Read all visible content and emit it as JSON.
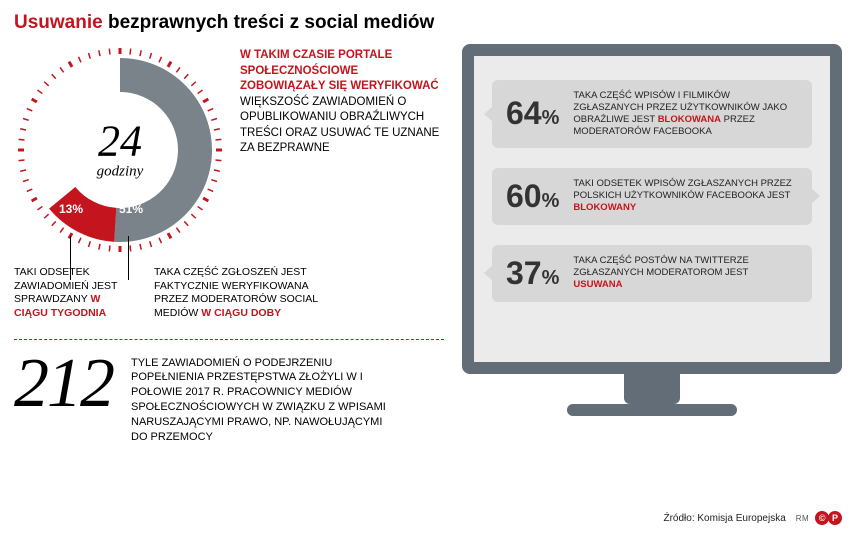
{
  "title": {
    "red": "Usuwanie",
    "rest": " bezprawnych treści z social mediów"
  },
  "donut": {
    "type": "donut",
    "center_value": "24",
    "center_unit": "godziny",
    "slices": [
      {
        "label": "51%",
        "value": 51,
        "color": "#7a828a"
      },
      {
        "label": "13%",
        "value": 13,
        "color": "#c4151e"
      }
    ],
    "remainder_color": "#e3e3e3",
    "tick_color": "#c4151e",
    "background": "#ffffff",
    "outer_radius": 100,
    "inner_radius": 58
  },
  "side_paragraph": {
    "red_lead": "W TAKIM CZASIE PORTALE SPOŁECZNOŚCIOWE ZOBOWIĄZAŁY SIĘ WERYFIKOWAĆ",
    "rest": " WIĘKSZOŚĆ ZAWIADOMIEŃ O OPUBLIKOWANIU OBRAŹLIWYCH TREŚCI ORAZ USUWAĆ TE UZNANE ZA BEZPRAWNE"
  },
  "footnotes": {
    "left": {
      "text": "TAKI ODSETEK ZAWIADOMIEŃ JEST SPRAWDZANY ",
      "red": "W CIĄGU TYGODNIA"
    },
    "right": {
      "text": "TAKA CZĘŚĆ ZGŁOSZEŃ JEST FAKTYCZNIE WERYFIKOWANA PRZEZ MODERATORÓW SOCIAL MEDIÓW ",
      "red": "W CIĄGU DOBY"
    }
  },
  "stat212": {
    "value": "212",
    "text": "TYLE ZAWIADOMIEŃ O PODEJRZENIU POPEŁNIENIA PRZESTĘPSTWA ZŁOŻYLI W I POŁOWIE 2017 R. PRACOWNICY MEDIÓW SPOŁECZNOŚCIOWYCH W ZWIĄZKU Z WPISAMI NARUSZAJĄCYMI PRAWO, NP. NAWOŁUJĄCYMI DO PRZEMOCY"
  },
  "monitor": {
    "rows": [
      {
        "pct": "64",
        "pre": "TAKA CZĘŚĆ WPISÓW I FILMIKÓW ZGŁASZANYCH PRZEZ UŻYTKOWNIKÓW JAKO OBRAŹLIWE JEST ",
        "red": "BLOKOWANA",
        "post": " PRZEZ MODERATORÓW FACEBOOKA"
      },
      {
        "pct": "60",
        "pre": "TAKI ODSETEK WPISÓW ZGŁASZANYCH PRZEZ POLSKICH UŻYTKOWNIKÓW FACEBOOKA JEST ",
        "red": "BLOKOWANY",
        "post": ""
      },
      {
        "pct": "37",
        "pre": "TAKA CZĘŚĆ POSTÓW NA TWITTERZE ZGŁASZANYCH MODERATOROM JEST ",
        "red": "USUWANA",
        "post": ""
      }
    ]
  },
  "source": {
    "label": "Źródło: Komisja Europejska",
    "credit": "RM",
    "c": "©",
    "p": "P"
  },
  "colors": {
    "red": "#c4151e",
    "gray": "#7a828a",
    "light": "#e3e3e3",
    "monitor_frame": "#626d77",
    "monitor_bg": "#ebebeb",
    "bubble": "#d7d7d7"
  }
}
